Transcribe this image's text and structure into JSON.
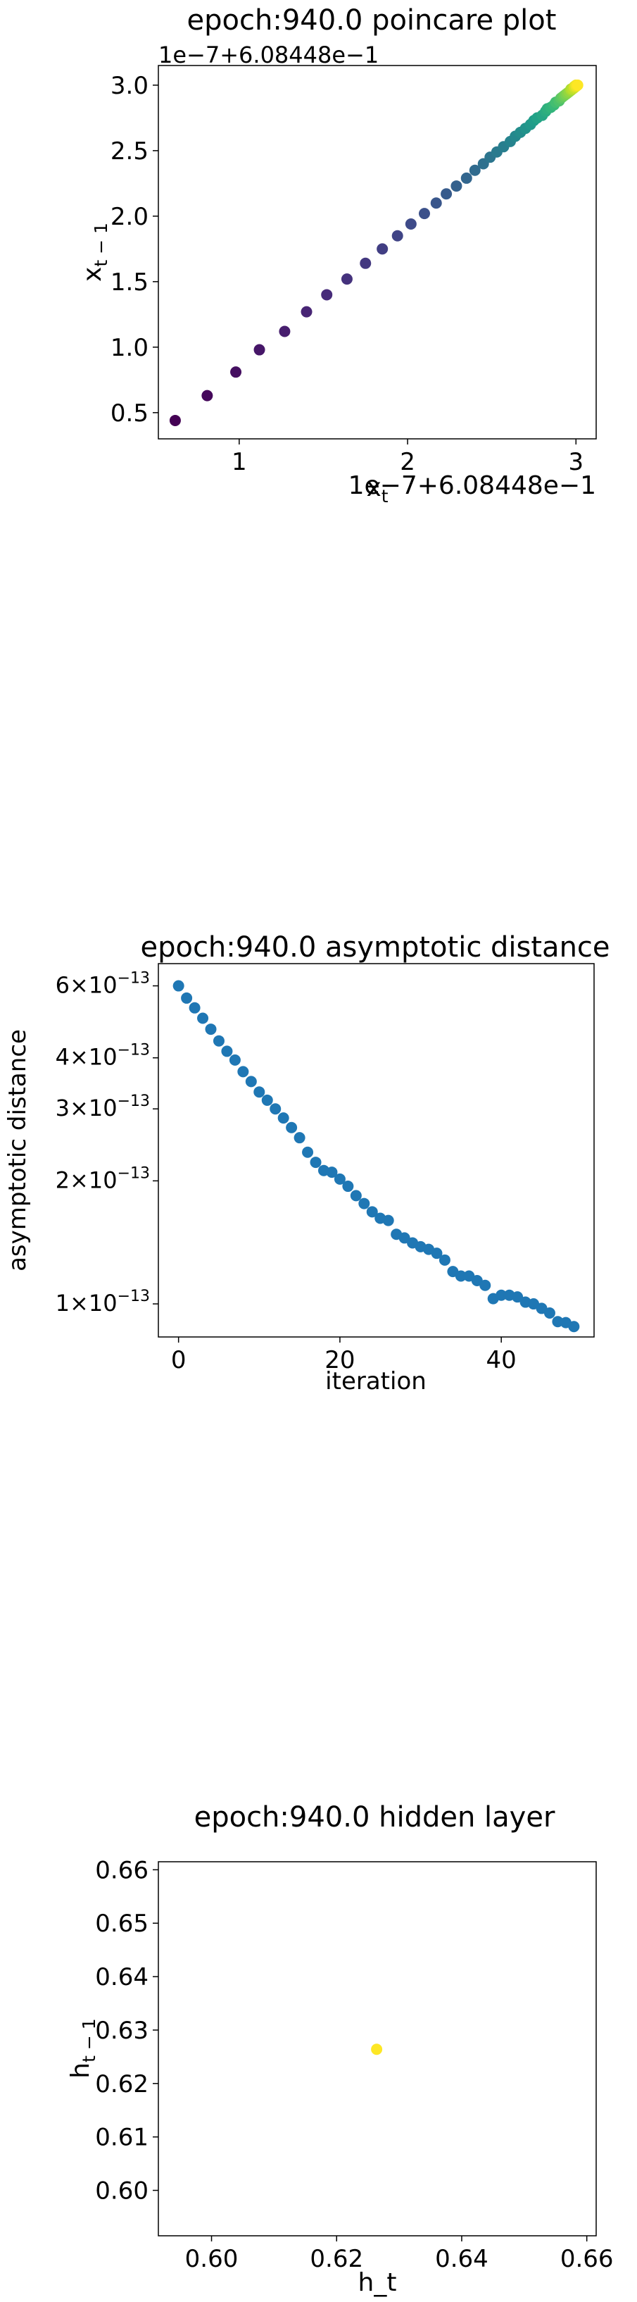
{
  "chart_data": [
    {
      "type": "scatter",
      "title": "epoch:940.0 poincare plot",
      "xlabel": "x_t",
      "ylabel": "x_{t-1}",
      "x_offset_text": "1e−7+6.08448e−1",
      "y_offset_text": "1e−7+6.08448e−1",
      "xlim": [
        0.52,
        3.12
      ],
      "ylim": [
        0.3,
        3.15
      ],
      "xticks": [
        {
          "v": 1,
          "label": "1"
        },
        {
          "v": 2,
          "label": "2"
        },
        {
          "v": 3,
          "label": "3"
        }
      ],
      "yticks": [
        {
          "v": 0.5,
          "label": "0.5"
        },
        {
          "v": 1.0,
          "label": "1.0"
        },
        {
          "v": 1.5,
          "label": "1.5"
        },
        {
          "v": 2.0,
          "label": "2.0"
        },
        {
          "v": 2.5,
          "label": "2.5"
        },
        {
          "v": 3.0,
          "label": "3.0"
        }
      ],
      "colormap": "viridis",
      "x": [
        0.62,
        0.81,
        0.98,
        1.12,
        1.27,
        1.4,
        1.52,
        1.64,
        1.75,
        1.85,
        1.94,
        2.02,
        2.1,
        2.17,
        2.23,
        2.29,
        2.35,
        2.4,
        2.45,
        2.49,
        2.53,
        2.57,
        2.61,
        2.64,
        2.67,
        2.7,
        2.73,
        2.75,
        2.77,
        2.8,
        2.82,
        2.83,
        2.85,
        2.87,
        2.88,
        2.9,
        2.91,
        2.92,
        2.93,
        2.94,
        2.95,
        2.96,
        2.97,
        2.97,
        2.98,
        2.99,
        2.99,
        3.0,
        3.0,
        3.01
      ],
      "y": [
        0.44,
        0.63,
        0.81,
        0.98,
        1.12,
        1.27,
        1.4,
        1.52,
        1.64,
        1.75,
        1.85,
        1.94,
        2.02,
        2.1,
        2.17,
        2.23,
        2.29,
        2.35,
        2.4,
        2.45,
        2.49,
        2.53,
        2.57,
        2.61,
        2.64,
        2.67,
        2.7,
        2.73,
        2.75,
        2.77,
        2.8,
        2.82,
        2.83,
        2.85,
        2.87,
        2.88,
        2.9,
        2.91,
        2.92,
        2.93,
        2.94,
        2.95,
        2.96,
        2.97,
        2.97,
        2.98,
        2.99,
        2.99,
        3.0,
        3.0
      ]
    },
    {
      "type": "scatter",
      "title": "epoch:940.0 asymptotic distance",
      "xlabel": "iteration",
      "ylabel": "asymptotic distance",
      "yscale": "log",
      "xlim": [
        -2.5,
        51.5
      ],
      "ylim": [
        8.3e-14,
        6.8e-13
      ],
      "xticks": [
        {
          "v": 0,
          "label": "0"
        },
        {
          "v": 20,
          "label": "20"
        },
        {
          "v": 40,
          "label": "40"
        }
      ],
      "yticks": [
        {
          "v": 6e-13,
          "mant": "6",
          "exp": "−13"
        },
        {
          "v": 4e-13,
          "mant": "4",
          "exp": "−13"
        },
        {
          "v": 3e-13,
          "mant": "3",
          "exp": "−13"
        },
        {
          "v": 2e-13,
          "mant": "2",
          "exp": "−13"
        },
        {
          "v": 1e-13,
          "mant": "1",
          "exp": "−13"
        }
      ],
      "color": "#1f77b4",
      "x": [
        0,
        1,
        2,
        3,
        4,
        5,
        6,
        7,
        8,
        9,
        10,
        11,
        12,
        13,
        14,
        15,
        16,
        17,
        18,
        19,
        20,
        21,
        22,
        23,
        24,
        25,
        26,
        27,
        28,
        29,
        30,
        31,
        32,
        33,
        34,
        35,
        36,
        37,
        38,
        39,
        40,
        41,
        42,
        43,
        44,
        45,
        46,
        47,
        48,
        49
      ],
      "y": [
        6e-13,
        5.6e-13,
        5.3e-13,
        5e-13,
        4.7e-13,
        4.4e-13,
        4.15e-13,
        3.95e-13,
        3.7e-13,
        3.5e-13,
        3.3e-13,
        3.15e-13,
        3e-13,
        2.85e-13,
        2.7e-13,
        2.55e-13,
        2.35e-13,
        2.22e-13,
        2.12e-13,
        2.1e-13,
        2.02e-13,
        1.94e-13,
        1.84e-13,
        1.76e-13,
        1.68e-13,
        1.62e-13,
        1.6e-13,
        1.48e-13,
        1.45e-13,
        1.41e-13,
        1.38e-13,
        1.36e-13,
        1.33e-13,
        1.28e-13,
        1.2e-13,
        1.17e-13,
        1.17e-13,
        1.14e-13,
        1.11e-13,
        1.03e-13,
        1.05e-13,
        1.05e-13,
        1.04e-13,
        1.01e-13,
        1e-13,
        9.75e-14,
        9.5e-14,
        9.05e-14,
        9e-14,
        8.8e-14
      ]
    },
    {
      "type": "scatter",
      "title": "epoch:940.0 hidden layer",
      "xlabel": "h_t",
      "ylabel": "h_{t-1}",
      "xlim": [
        0.5915,
        0.6615
      ],
      "ylim": [
        0.5915,
        0.6615
      ],
      "xticks": [
        {
          "v": 0.6,
          "label": "0.60"
        },
        {
          "v": 0.62,
          "label": "0.62"
        },
        {
          "v": 0.64,
          "label": "0.64"
        },
        {
          "v": 0.66,
          "label": "0.66"
        }
      ],
      "yticks": [
        {
          "v": 0.6,
          "label": "0.60"
        },
        {
          "v": 0.61,
          "label": "0.61"
        },
        {
          "v": 0.62,
          "label": "0.62"
        },
        {
          "v": 0.63,
          "label": "0.63"
        },
        {
          "v": 0.64,
          "label": "0.64"
        },
        {
          "v": 0.65,
          "label": "0.65"
        },
        {
          "v": 0.66,
          "label": "0.66"
        }
      ],
      "color": "#fde725",
      "x": [
        0.6264
      ],
      "y": [
        0.6264
      ]
    }
  ]
}
